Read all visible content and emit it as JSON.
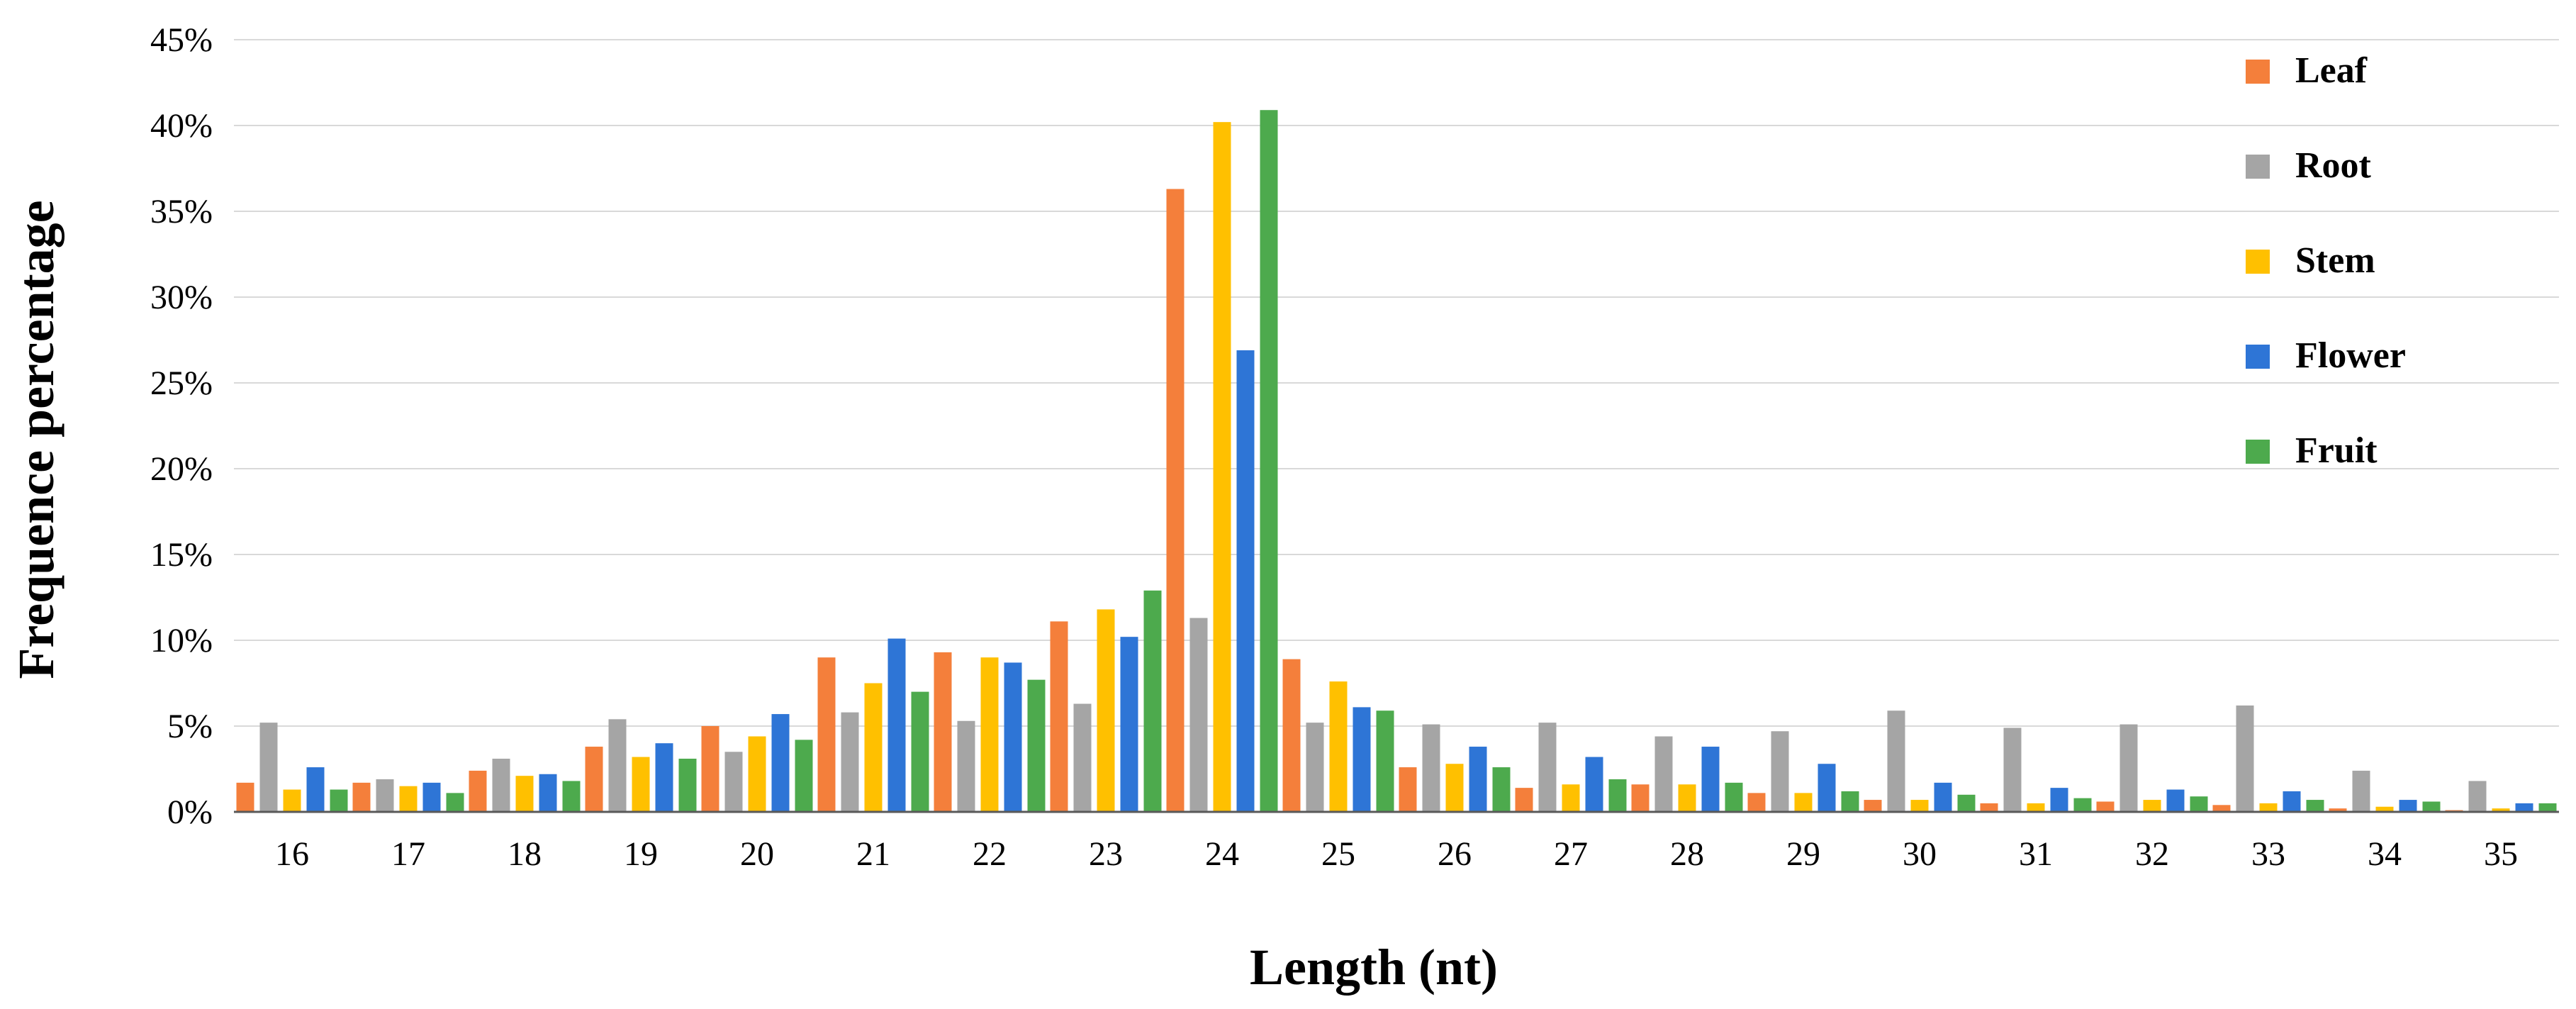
{
  "chart_data": {
    "type": "bar",
    "title": "",
    "xlabel": "Length (nt)",
    "ylabel": "Frequence percentage",
    "ylim": [
      0,
      45
    ],
    "yticks": [
      0,
      5,
      10,
      15,
      20,
      25,
      30,
      35,
      40,
      45
    ],
    "ytick_suffix": "%",
    "grid": true,
    "legend_position": "top-right",
    "categories": [
      "16",
      "17",
      "18",
      "19",
      "20",
      "21",
      "22",
      "23",
      "24",
      "25",
      "26",
      "27",
      "28",
      "29",
      "30",
      "31",
      "32",
      "33",
      "34",
      "35"
    ],
    "series": [
      {
        "name": "Leaf",
        "color": "#f47f3b",
        "values": [
          1.7,
          1.7,
          2.4,
          3.8,
          5.0,
          9.0,
          9.3,
          11.1,
          36.3,
          8.9,
          2.6,
          1.4,
          1.6,
          1.1,
          0.7,
          0.5,
          0.6,
          0.4,
          0.2,
          0.1
        ]
      },
      {
        "name": "Root",
        "color": "#a5a5a5",
        "values": [
          5.2,
          1.9,
          3.1,
          5.4,
          3.5,
          5.8,
          5.3,
          6.3,
          11.3,
          5.2,
          5.1,
          5.2,
          4.4,
          4.7,
          5.9,
          4.9,
          5.1,
          6.2,
          2.4,
          1.8
        ]
      },
      {
        "name": "Stem",
        "color": "#ffc000",
        "values": [
          1.3,
          1.5,
          2.1,
          3.2,
          4.4,
          7.5,
          9.0,
          11.8,
          40.2,
          7.6,
          2.8,
          1.6,
          1.6,
          1.1,
          0.7,
          0.5,
          0.7,
          0.5,
          0.3,
          0.2
        ]
      },
      {
        "name": "Flower",
        "color": "#2e75d6",
        "values": [
          2.6,
          1.7,
          2.2,
          4.0,
          5.7,
          10.1,
          8.7,
          10.2,
          26.9,
          6.1,
          3.8,
          3.2,
          3.8,
          2.8,
          1.7,
          1.4,
          1.3,
          1.2,
          0.7,
          0.5
        ]
      },
      {
        "name": "Fruit",
        "color": "#4daa4d",
        "values": [
          1.3,
          1.1,
          1.8,
          3.1,
          4.2,
          7.0,
          7.7,
          12.9,
          40.9,
          5.9,
          2.6,
          1.9,
          1.7,
          1.2,
          1.0,
          0.8,
          0.9,
          0.7,
          0.6,
          0.5
        ]
      }
    ]
  }
}
